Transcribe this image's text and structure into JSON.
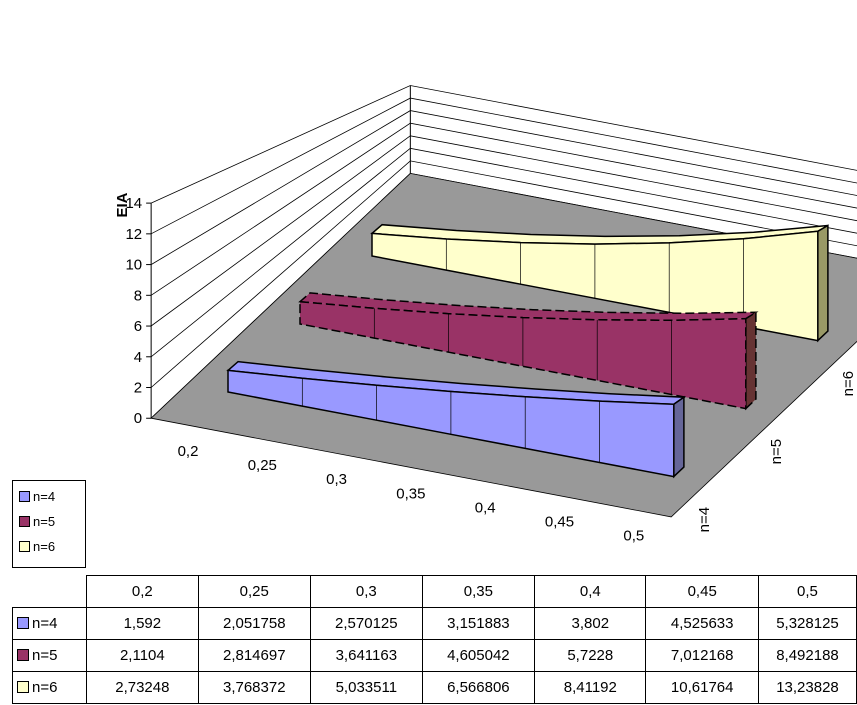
{
  "chart_data": {
    "type": "area",
    "title": "",
    "xlabel": "",
    "ylabel": "EIA",
    "ylim": [
      0,
      14
    ],
    "y_ticks": [
      "0",
      "2",
      "4",
      "6",
      "8",
      "10",
      "12",
      "14"
    ],
    "categories": [
      "0,2",
      "0,25",
      "0,3",
      "0,35",
      "0,4",
      "0,45",
      "0,5"
    ],
    "depth_labels": [
      "n=4",
      "n=5",
      "n=6"
    ],
    "legend_position": "left",
    "series": [
      {
        "name": "n=4",
        "color": "#9999ff",
        "values": [
          1.592,
          2.051758,
          2.570125,
          3.151883,
          3.802,
          4.525633,
          5.328125
        ],
        "labels": [
          "1,592",
          "2,051758",
          "2,570125",
          "3,151883",
          "3,802",
          "4,525633",
          "5,328125"
        ]
      },
      {
        "name": "n=5",
        "color": "#993366",
        "values": [
          2.1104,
          2.814697,
          3.641163,
          4.605042,
          5.7228,
          7.012168,
          8.492188
        ],
        "labels": [
          "2,1104",
          "2,814697",
          "3,641163",
          "4,605042",
          "5,7228",
          "7,012168",
          "8,492188"
        ]
      },
      {
        "name": "n=6",
        "color": "#ffffcc",
        "values": [
          2.73248,
          3.768372,
          5.033511,
          6.566806,
          8.41192,
          10.61764,
          13.23828
        ],
        "labels": [
          "2,73248",
          "3,768372",
          "5,033511",
          "6,566806",
          "8,41192",
          "10,61764",
          "13,23828"
        ]
      }
    ]
  }
}
